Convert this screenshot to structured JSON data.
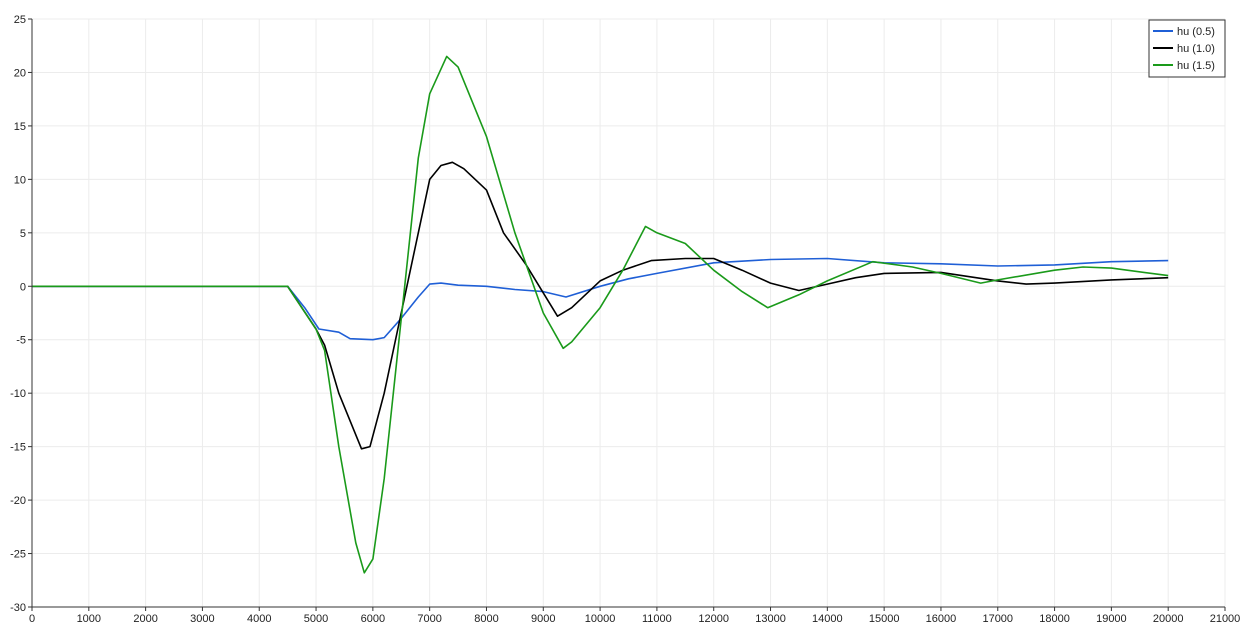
{
  "chart_data": {
    "type": "line",
    "title": "",
    "xlabel": "",
    "ylabel": "",
    "xlim": [
      0,
      21000
    ],
    "ylim": [
      -30,
      25
    ],
    "xticks": [
      0,
      1000,
      2000,
      3000,
      4000,
      5000,
      6000,
      7000,
      8000,
      9000,
      10000,
      11000,
      12000,
      13000,
      14000,
      15000,
      16000,
      17000,
      18000,
      19000,
      20000,
      21000
    ],
    "yticks": [
      -30,
      -25,
      -20,
      -15,
      -10,
      -5,
      0,
      5,
      10,
      15,
      20,
      25
    ],
    "grid": true,
    "legend_position": "top-right",
    "series": [
      {
        "name": "hu (0.5)",
        "color": "#1f5fd6",
        "x": [
          0,
          4500,
          4800,
          5050,
          5400,
          5600,
          6000,
          6200,
          6500,
          6800,
          7000,
          7200,
          7500,
          8000,
          8500,
          9000,
          9400,
          10000,
          10500,
          11000,
          12000,
          13000,
          14000,
          15000,
          16000,
          17000,
          18000,
          19000,
          20000
        ],
        "y": [
          0,
          0,
          -2.0,
          -4.0,
          -4.3,
          -4.9,
          -5.0,
          -4.8,
          -3.0,
          -1.0,
          0.2,
          0.3,
          0.1,
          0.0,
          -0.3,
          -0.5,
          -1.0,
          0.0,
          0.7,
          1.2,
          2.2,
          2.5,
          2.6,
          2.2,
          2.1,
          1.9,
          2.0,
          2.3,
          2.4
        ]
      },
      {
        "name": "hu (1.0)",
        "color": "#000000",
        "x": [
          0,
          4500,
          5000,
          5150,
          5400,
          5800,
          5950,
          6200,
          6600,
          7000,
          7200,
          7400,
          7600,
          8000,
          8300,
          8700,
          9250,
          9500,
          10000,
          10400,
          10900,
          11500,
          12000,
          12500,
          13000,
          13500,
          14000,
          14500,
          15000,
          16000,
          17000,
          17500,
          18000,
          19000,
          20000
        ],
        "y": [
          0,
          0,
          -4.0,
          -5.5,
          -10.0,
          -15.2,
          -15.0,
          -10.0,
          0.0,
          10.0,
          11.3,
          11.6,
          11.0,
          9.0,
          5.0,
          2.0,
          -2.8,
          -2.0,
          0.5,
          1.5,
          2.4,
          2.6,
          2.6,
          1.5,
          0.3,
          -0.4,
          0.2,
          0.8,
          1.2,
          1.3,
          0.5,
          0.2,
          0.3,
          0.6,
          0.8
        ]
      },
      {
        "name": "hu (1.5)",
        "color": "#1a9a1a",
        "x": [
          0,
          4500,
          5000,
          5150,
          5400,
          5700,
          5850,
          6000,
          6200,
          6500,
          6800,
          7000,
          7300,
          7500,
          8000,
          8500,
          9000,
          9350,
          9500,
          10000,
          10400,
          10800,
          11000,
          11500,
          12000,
          12500,
          12950,
          13500,
          14000,
          14800,
          15500,
          16000,
          16700,
          17000,
          18000,
          18500,
          19000,
          20000
        ],
        "y": [
          0,
          0,
          -4.0,
          -6.0,
          -15.0,
          -24.0,
          -26.8,
          -25.5,
          -18.0,
          -3.0,
          12.0,
          18.0,
          21.5,
          20.5,
          14.0,
          5.0,
          -2.5,
          -5.8,
          -5.2,
          -2.0,
          1.5,
          5.6,
          5.0,
          4.0,
          1.5,
          -0.5,
          -2.0,
          -0.8,
          0.5,
          2.3,
          1.8,
          1.2,
          0.3,
          0.6,
          1.5,
          1.8,
          1.7,
          1.0
        ]
      }
    ]
  }
}
